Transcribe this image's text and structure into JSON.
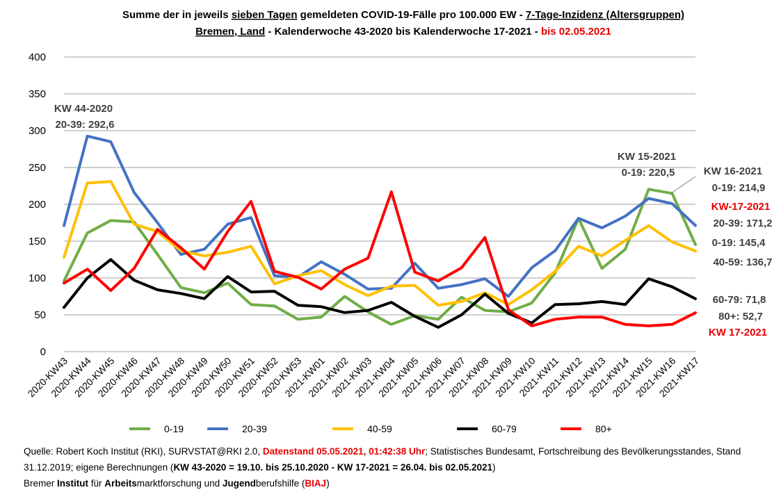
{
  "title_line1": {
    "a": "Summe der in jeweils ",
    "b": "sieben Tagen",
    "c": " gemeldeten COVID-19-Fälle pro 100.000 EW - ",
    "d": "7-Tage-Inzidenz (Altersgruppen)"
  },
  "title_line2": {
    "a": "Bremen, Land",
    "b": " -  Kalenderwoche 43-2020 bis Kalenderwoche 17-2021 - ",
    "c": "bis 02.05.2021"
  },
  "colors": {
    "0-19": "#70ad47",
    "20-39": "#4472c4",
    "40-59": "#ffc000",
    "60-79": "#000000",
    "80+": "#ff0000",
    "grid": "#bfbfbf"
  },
  "chart_data": {
    "type": "line",
    "ylim": [
      0,
      400
    ],
    "yticks": [
      0,
      50,
      100,
      150,
      200,
      250,
      300,
      350,
      400
    ],
    "grid": "horizontal",
    "legend": "bottom",
    "categories": [
      "2020-KW43",
      "2020-KW44",
      "2020-KW45",
      "2020-KW46",
      "2020-KW47",
      "2020-KW48",
      "2020-KW49",
      "2020-KW50",
      "2020-KW51",
      "2020-KW52",
      "2020-KW53",
      "2021-KW01",
      "2021-KW02",
      "2021-KW03",
      "2021-KW04",
      "2021-KW05",
      "2021-KW06",
      "2021-KW07",
      "2021-KW08",
      "2021-KW09",
      "2021-KW10",
      "2021-KW11",
      "2021-KW12",
      "2021-KW13",
      "2021-KW14",
      "2021-KW15",
      "2021-KW16",
      "2021-KW17"
    ],
    "series": [
      {
        "name": "0-19",
        "values": [
          96,
          161,
          178,
          176,
          132,
          87,
          80,
          93,
          64,
          62,
          44,
          47,
          75,
          54,
          37,
          49,
          44,
          74,
          56,
          54,
          66,
          107,
          181,
          113,
          139,
          220.5,
          214.9,
          145.4
        ]
      },
      {
        "name": "20-39",
        "values": [
          171,
          292.6,
          285,
          216,
          175,
          132,
          139,
          173,
          182,
          103,
          101,
          122,
          105,
          85,
          86,
          120,
          86,
          91,
          99,
          75,
          114,
          137,
          181,
          168,
          184,
          208,
          201,
          171.2
        ]
      },
      {
        "name": "40-59",
        "values": [
          128,
          229,
          231,
          173,
          163,
          137,
          130,
          135,
          143,
          92,
          103,
          110,
          91,
          76,
          89,
          90,
          63,
          68,
          80,
          64,
          84,
          109,
          143,
          130,
          151,
          171,
          149,
          136.7
        ]
      },
      {
        "name": "60-79",
        "values": [
          60,
          100,
          125,
          97,
          84,
          79,
          72,
          102,
          81,
          82,
          63,
          61,
          53,
          56,
          67,
          48,
          33,
          50,
          78,
          52,
          39,
          64,
          65,
          68,
          64,
          99,
          88,
          71.8
        ]
      },
      {
        "name": "80+",
        "values": [
          93,
          112,
          83,
          113,
          166,
          141,
          112,
          163,
          204,
          109,
          101,
          85,
          112,
          127,
          217,
          108,
          96,
          114,
          155,
          57,
          35,
          44,
          47,
          47,
          37,
          35,
          37,
          52.7
        ]
      }
    ]
  },
  "annotations": {
    "kw44_a": "KW 44-2020",
    "kw44_b": "20-39: 292,6",
    "kw15_a": "KW 15-2021",
    "kw15_b": "0-19: 220,5",
    "kw16_a": "KW 16-2021",
    "kw16_b": "0-19: 214,9",
    "kw17_red": "KW-17-2021",
    "v2039": "20-39: 171,2",
    "v019": "0-19: 145,4",
    "v4059": "40-59: 136,7",
    "v6079": "60-79: 71,8",
    "v80": "80+: 52,7",
    "kw17_red2": "KW 17-2021"
  },
  "source": {
    "s1": "Quelle: Robert Koch Institut (RKI), SURVSTAT@RKI 2.0, ",
    "s2": "Datenstand 05.05.2021, 01:42:38 Uhr",
    "s3": "; Statistisches Bundesamt, Fortschreibung des Bevölkerungsstandes, Stand 31.12.2019; eigene Berechnungen (",
    "s4": "KW 43-2020 = 19.10. bis 25.10.2020 - KW 17-2021 = 26.04. bis 02.05.2021",
    "s5": ")",
    "s6": "Bremer ",
    "s7": "Institut",
    "s8": " für ",
    "s9": "Arbeits",
    "s10": "marktforschung und ",
    "s11": "Jugend",
    "s12": "berufshilfe (",
    "s13": "BIAJ",
    "s14": ")"
  }
}
